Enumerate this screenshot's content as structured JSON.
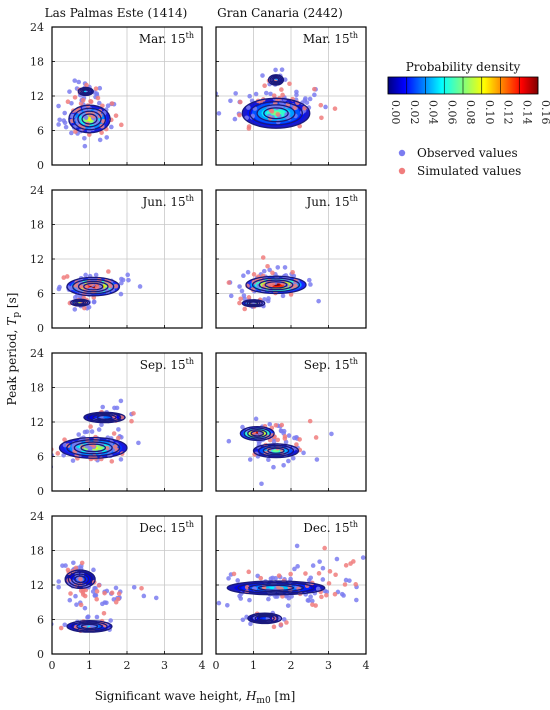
{
  "columns": [
    "Las Palmas Este (1414)",
    "Gran Canaria (2442)"
  ],
  "dates": [
    {
      "label": "Mar. 15",
      "sup": "th"
    },
    {
      "label": "Jun. 15",
      "sup": "th"
    },
    {
      "label": "Sep. 15",
      "sup": "th"
    },
    {
      "label": "Dec. 15",
      "sup": "th"
    }
  ],
  "xlabel": {
    "pre": "Significant wave height, ",
    "sym": "H",
    "sub": "m0",
    "post": " [m]"
  },
  "ylabel": {
    "pre": "Peak period, ",
    "sym": "T",
    "sub": "p",
    "post": " [s]"
  },
  "colorbar": {
    "title": "Probability density",
    "ticks": [
      "0.00",
      "0.02",
      "0.04",
      "0.06",
      "0.08",
      "0.10",
      "0.12",
      "0.14",
      "0.16"
    ]
  },
  "legend": {
    "observed": "Observed values",
    "simulated": "Simulated values"
  },
  "colors": {
    "observed": "#7b7cf0",
    "simulated": "#f07d7d",
    "contour": "#1a1a7a"
  },
  "chart_data": [
    {
      "type": "scatter",
      "row": 0,
      "col": 0,
      "xlim": [
        0,
        4
      ],
      "ylim": [
        0,
        24
      ],
      "xticks": [
        "0",
        "1",
        "2",
        "3",
        "4"
      ],
      "yticks": [
        "0",
        "6",
        "12",
        "18",
        "24"
      ],
      "clusters": [
        {
          "x": 1.0,
          "y": 8.0,
          "sx": 0.4,
          "sy": 1.8,
          "n": 55
        },
        {
          "x": 0.9,
          "y": 12.5,
          "sx": 0.25,
          "sy": 1.0,
          "n": 18
        }
      ],
      "density": [
        {
          "x": 1.0,
          "y": 8.0,
          "rx": 0.55,
          "ry": 2.4,
          "peak": 0.1
        },
        {
          "x": 0.9,
          "y": 12.8,
          "rx": 0.2,
          "ry": 0.7,
          "peak": 0.06
        }
      ]
    },
    {
      "type": "scatter",
      "row": 0,
      "col": 1,
      "xlim": [
        0,
        4
      ],
      "ylim": [
        0,
        24
      ],
      "xticks": [
        "0",
        "1",
        "2",
        "3",
        "4"
      ],
      "yticks": [
        "0",
        "6",
        "12",
        "18",
        "24"
      ],
      "clusters": [
        {
          "x": 1.6,
          "y": 10.5,
          "sx": 0.7,
          "sy": 1.8,
          "n": 55
        },
        {
          "x": 1.6,
          "y": 14.5,
          "sx": 0.2,
          "sy": 0.9,
          "n": 12
        }
      ],
      "density": [
        {
          "x": 1.6,
          "y": 9.0,
          "rx": 0.9,
          "ry": 2.6,
          "peak": 0.08
        },
        {
          "x": 1.6,
          "y": 14.8,
          "rx": 0.2,
          "ry": 0.9,
          "peak": 0.05
        }
      ]
    },
    {
      "type": "scatter",
      "row": 1,
      "col": 0,
      "xlim": [
        0,
        4
      ],
      "ylim": [
        0,
        24
      ],
      "xticks": [
        "0",
        "1",
        "2",
        "3",
        "4"
      ],
      "yticks": [
        "0",
        "6",
        "12",
        "18",
        "24"
      ],
      "clusters": [
        {
          "x": 1.1,
          "y": 7.5,
          "sx": 0.45,
          "sy": 1.0,
          "n": 50
        },
        {
          "x": 0.8,
          "y": 4.5,
          "sx": 0.2,
          "sy": 0.6,
          "n": 15
        }
      ],
      "density": [
        {
          "x": 1.1,
          "y": 7.2,
          "rx": 0.7,
          "ry": 1.6,
          "peak": 0.16
        },
        {
          "x": 0.75,
          "y": 4.4,
          "rx": 0.25,
          "ry": 0.6,
          "peak": 0.1
        }
      ]
    },
    {
      "type": "scatter",
      "row": 1,
      "col": 1,
      "xlim": [
        0,
        4
      ],
      "ylim": [
        0,
        24
      ],
      "xticks": [
        "0",
        "1",
        "2",
        "3",
        "4"
      ],
      "yticks": [
        "0",
        "6",
        "12",
        "18",
        "24"
      ],
      "clusters": [
        {
          "x": 1.5,
          "y": 8.0,
          "sx": 0.55,
          "sy": 1.3,
          "n": 50
        },
        {
          "x": 1.0,
          "y": 4.2,
          "sx": 0.25,
          "sy": 0.6,
          "n": 15
        }
      ],
      "density": [
        {
          "x": 1.6,
          "y": 7.5,
          "rx": 0.8,
          "ry": 1.5,
          "peak": 0.16
        },
        {
          "x": 1.0,
          "y": 4.3,
          "rx": 0.3,
          "ry": 0.6,
          "peak": 0.1
        }
      ]
    },
    {
      "type": "scatter",
      "row": 2,
      "col": 0,
      "xlim": [
        0,
        4
      ],
      "ylim": [
        0,
        24
      ],
      "xticks": [
        "0",
        "1",
        "2",
        "3",
        "4"
      ],
      "yticks": [
        "0",
        "6",
        "12",
        "18",
        "24"
      ],
      "clusters": [
        {
          "x": 1.1,
          "y": 7.5,
          "sx": 0.5,
          "sy": 1.3,
          "n": 55
        },
        {
          "x": 1.6,
          "y": 12.8,
          "sx": 0.4,
          "sy": 1.2,
          "n": 15
        }
      ],
      "density": [
        {
          "x": 1.1,
          "y": 7.5,
          "rx": 0.9,
          "ry": 1.8,
          "peak": 0.1
        },
        {
          "x": 1.4,
          "y": 12.8,
          "rx": 0.55,
          "ry": 0.9,
          "peak": 0.04
        }
      ]
    },
    {
      "type": "scatter",
      "row": 2,
      "col": 1,
      "xlim": [
        0,
        4
      ],
      "ylim": [
        0,
        24
      ],
      "xticks": [
        "0",
        "1",
        "2",
        "3",
        "4"
      ],
      "yticks": [
        "0",
        "6",
        "12",
        "18",
        "24"
      ],
      "clusters": [
        {
          "x": 1.5,
          "y": 8.5,
          "sx": 0.5,
          "sy": 1.8,
          "n": 50
        }
      ],
      "density": [
        {
          "x": 1.1,
          "y": 10.0,
          "rx": 0.45,
          "ry": 1.2,
          "peak": 0.16
        },
        {
          "x": 1.6,
          "y": 7.0,
          "rx": 0.6,
          "ry": 1.2,
          "peak": 0.08
        }
      ]
    },
    {
      "type": "scatter",
      "row": 3,
      "col": 0,
      "xlim": [
        0,
        4
      ],
      "ylim": [
        0,
        24
      ],
      "xticks": [
        "0",
        "1",
        "2",
        "3",
        "4"
      ],
      "yticks": [
        "0",
        "6",
        "12",
        "18",
        "24"
      ],
      "clusters": [
        {
          "x": 0.7,
          "y": 12.5,
          "sx": 0.25,
          "sy": 2.5,
          "n": 30
        },
        {
          "x": 1.5,
          "y": 10.5,
          "sx": 0.6,
          "sy": 1.2,
          "n": 25
        },
        {
          "x": 1.0,
          "y": 5.0,
          "sx": 0.35,
          "sy": 0.8,
          "n": 20
        }
      ],
      "density": [
        {
          "x": 0.75,
          "y": 13.0,
          "rx": 0.4,
          "ry": 1.6,
          "peak": 0.04
        },
        {
          "x": 1.0,
          "y": 4.8,
          "rx": 0.6,
          "ry": 1.0,
          "peak": 0.06
        }
      ]
    },
    {
      "type": "scatter",
      "row": 3,
      "col": 1,
      "xlim": [
        0,
        4
      ],
      "ylim": [
        0,
        24
      ],
      "xticks": [
        "0",
        "1",
        "2",
        "3",
        "4"
      ],
      "yticks": [
        "0",
        "6",
        "12",
        "18",
        "24"
      ],
      "clusters": [
        {
          "x": 1.6,
          "y": 11.5,
          "sx": 0.9,
          "sy": 1.6,
          "n": 55
        },
        {
          "x": 3.0,
          "y": 14.0,
          "sx": 0.5,
          "sy": 2.5,
          "n": 15
        },
        {
          "x": 1.3,
          "y": 6.0,
          "sx": 0.3,
          "sy": 0.8,
          "n": 10
        }
      ],
      "density": [
        {
          "x": 1.6,
          "y": 11.5,
          "rx": 1.3,
          "ry": 1.2,
          "peak": 0.06
        },
        {
          "x": 1.3,
          "y": 6.2,
          "rx": 0.45,
          "ry": 0.9,
          "peak": 0.03
        }
      ]
    }
  ]
}
